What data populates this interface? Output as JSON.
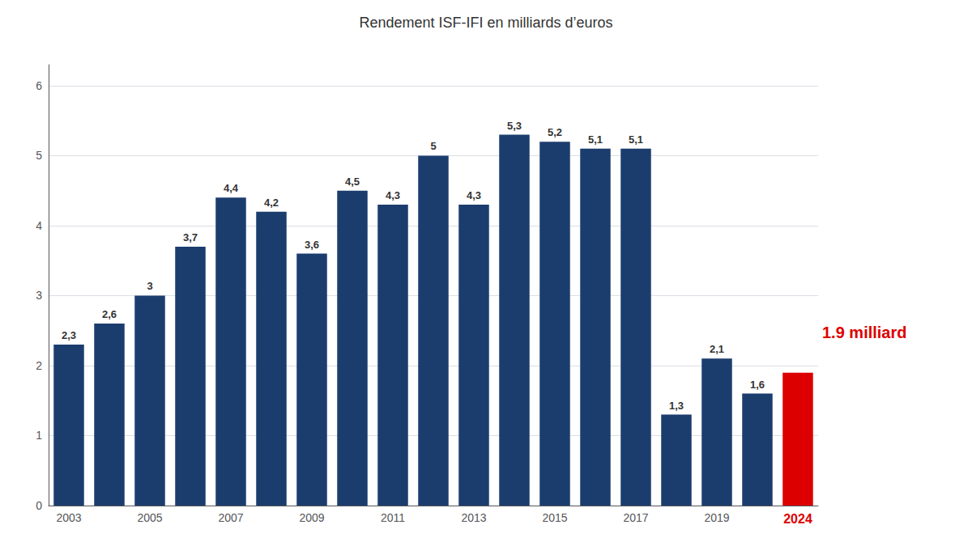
{
  "chart_data": {
    "type": "bar",
    "title": "Rendement ISF-IFI en milliards d’euros",
    "categories": [
      "2003",
      null,
      "2005",
      null,
      "2007",
      null,
      "2009",
      null,
      "2011",
      null,
      "2013",
      null,
      "2015",
      null,
      "2017",
      null,
      "2019",
      null,
      "2024"
    ],
    "values": [
      2.3,
      2.6,
      3.0,
      3.7,
      4.4,
      4.2,
      3.6,
      4.5,
      4.3,
      5.0,
      4.3,
      5.3,
      5.2,
      5.1,
      5.1,
      1.3,
      2.1,
      1.6,
      1.9
    ],
    "value_labels": [
      "2,3",
      "2,6",
      "3",
      "3,7",
      "4,4",
      "4,2",
      "3,6",
      "4,5",
      "4,3",
      "5",
      "4,3",
      "5,3",
      "5,2",
      "5,1",
      "5,1",
      "1,3",
      "2,1",
      "1,6",
      null
    ],
    "colors": [
      "#1b3d6e",
      "#1b3d6e",
      "#1b3d6e",
      "#1b3d6e",
      "#1b3d6e",
      "#1b3d6e",
      "#1b3d6e",
      "#1b3d6e",
      "#1b3d6e",
      "#1b3d6e",
      "#1b3d6e",
      "#1b3d6e",
      "#1b3d6e",
      "#1b3d6e",
      "#1b3d6e",
      "#1b3d6e",
      "#1b3d6e",
      "#1b3d6e",
      "#dd0000"
    ],
    "data_labels": true,
    "annotations": [
      {
        "text": "1.9 milliard"
      }
    ],
    "ylim": [
      0,
      6.3
    ],
    "yticks": [
      0,
      1,
      2,
      3,
      4,
      5,
      6
    ],
    "grid": true
  }
}
